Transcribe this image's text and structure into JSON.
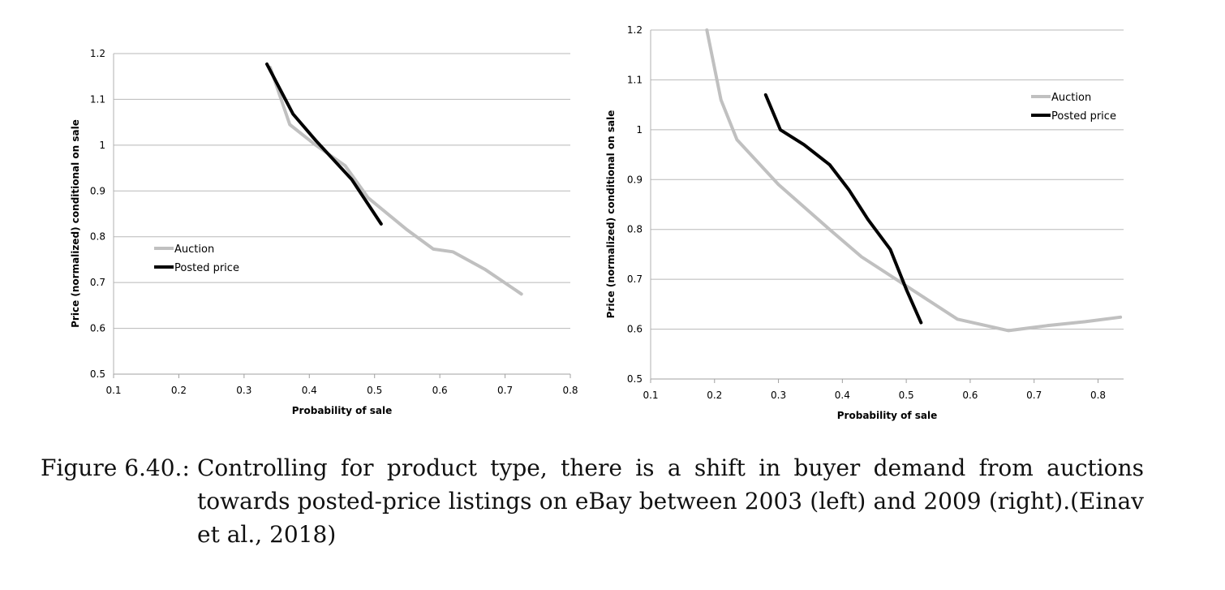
{
  "chart_data": [
    {
      "type": "line",
      "xlabel": "Probability of sale",
      "ylabel": "Price (normalized) conditional on sale",
      "xlim": [
        0.1,
        0.8
      ],
      "ylim": [
        0.5,
        1.2
      ],
      "xticks": [
        "0.1",
        "0.2",
        "0.3",
        "0.4",
        "0.5",
        "0.6",
        "0.7",
        "0.8"
      ],
      "yticks": [
        "0.5",
        "0.6",
        "0.7",
        "0.8",
        "0.9",
        "1",
        "1.1",
        "1.2"
      ],
      "grid": true,
      "legend": "left",
      "series": [
        {
          "name": "Auction",
          "color": "#c0c0c0",
          "points": [
            [
              0.34,
              1.17
            ],
            [
              0.37,
              1.045
            ],
            [
              0.41,
              1.0
            ],
            [
              0.455,
              0.955
            ],
            [
              0.49,
              0.885
            ],
            [
              0.55,
              0.815
            ],
            [
              0.59,
              0.773
            ],
            [
              0.62,
              0.767
            ],
            [
              0.67,
              0.728
            ],
            [
              0.725,
              0.675
            ]
          ]
        },
        {
          "name": "Posted price",
          "color": "#000000",
          "points": [
            [
              0.335,
              1.177
            ],
            [
              0.375,
              1.068
            ],
            [
              0.41,
              1.01
            ],
            [
              0.465,
              0.925
            ],
            [
              0.51,
              0.828
            ]
          ]
        }
      ]
    },
    {
      "type": "line",
      "xlabel": "Probability of sale",
      "ylabel": "Price (normalized) conditional on sale",
      "xlim": [
        0.1,
        0.84
      ],
      "ylim": [
        0.5,
        1.2
      ],
      "xticks": [
        "0.1",
        "0.2",
        "0.3",
        "0.4",
        "0.5",
        "0.6",
        "0.7",
        "0.8"
      ],
      "yticks": [
        "0.5",
        "0.6",
        "0.7",
        "0.8",
        "0.9",
        "1",
        "1.1",
        "1.2"
      ],
      "grid": true,
      "legend": "top-right",
      "series": [
        {
          "name": "Auction",
          "color": "#c0c0c0",
          "points": [
            [
              0.188,
              1.2
            ],
            [
              0.21,
              1.06
            ],
            [
              0.235,
              0.98
            ],
            [
              0.3,
              0.89
            ],
            [
              0.38,
              0.8
            ],
            [
              0.43,
              0.745
            ],
            [
              0.52,
              0.67
            ],
            [
              0.58,
              0.62
            ],
            [
              0.66,
              0.597
            ],
            [
              0.72,
              0.607
            ],
            [
              0.78,
              0.615
            ],
            [
              0.835,
              0.624
            ]
          ]
        },
        {
          "name": "Posted price",
          "color": "#000000",
          "points": [
            [
              0.28,
              1.07
            ],
            [
              0.303,
              1.0
            ],
            [
              0.34,
              0.97
            ],
            [
              0.38,
              0.93
            ],
            [
              0.41,
              0.88
            ],
            [
              0.44,
              0.82
            ],
            [
              0.475,
              0.76
            ],
            [
              0.5,
              0.68
            ],
            [
              0.523,
              0.613
            ]
          ]
        }
      ]
    }
  ],
  "caption": {
    "label": "Figure 6.40.:",
    "text": "Controlling for product type, there is a shift in buyer demand from auctions towards posted-price listings on eBay between 2003 (left) and 2009 (right).(Einav et al., 2018)"
  }
}
